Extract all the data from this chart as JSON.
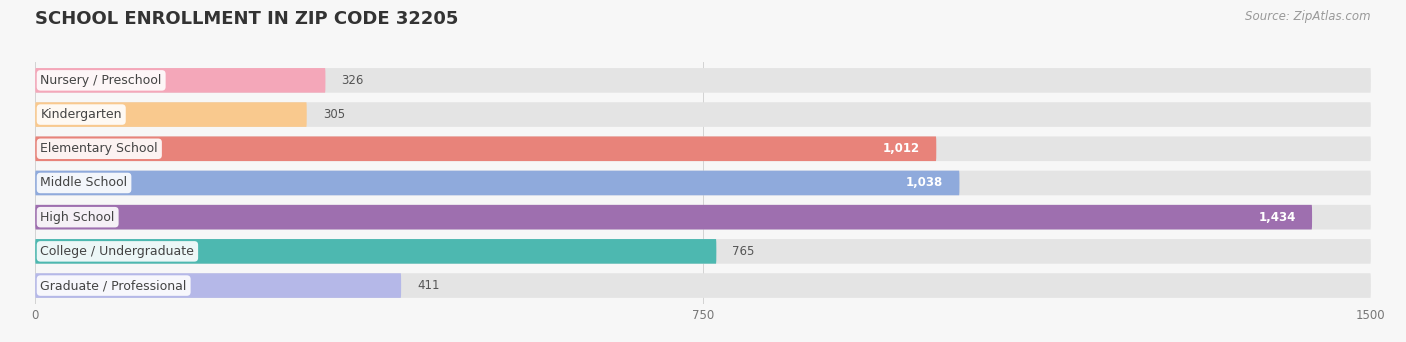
{
  "title": "SCHOOL ENROLLMENT IN ZIP CODE 32205",
  "source": "Source: ZipAtlas.com",
  "categories": [
    "Nursery / Preschool",
    "Kindergarten",
    "Elementary School",
    "Middle School",
    "High School",
    "College / Undergraduate",
    "Graduate / Professional"
  ],
  "values": [
    326,
    305,
    1012,
    1038,
    1434,
    765,
    411
  ],
  "colors": [
    "#f4a7b9",
    "#f9c98e",
    "#e8837a",
    "#8faadc",
    "#9e6faf",
    "#4db8b0",
    "#b5b8e8"
  ],
  "xlim": [
    0,
    1500
  ],
  "xticks": [
    0,
    750,
    1500
  ],
  "background_color": "#f7f7f7",
  "bar_bg_color": "#e4e4e4",
  "title_fontsize": 13,
  "label_fontsize": 9,
  "value_fontsize": 8.5,
  "source_fontsize": 8.5
}
